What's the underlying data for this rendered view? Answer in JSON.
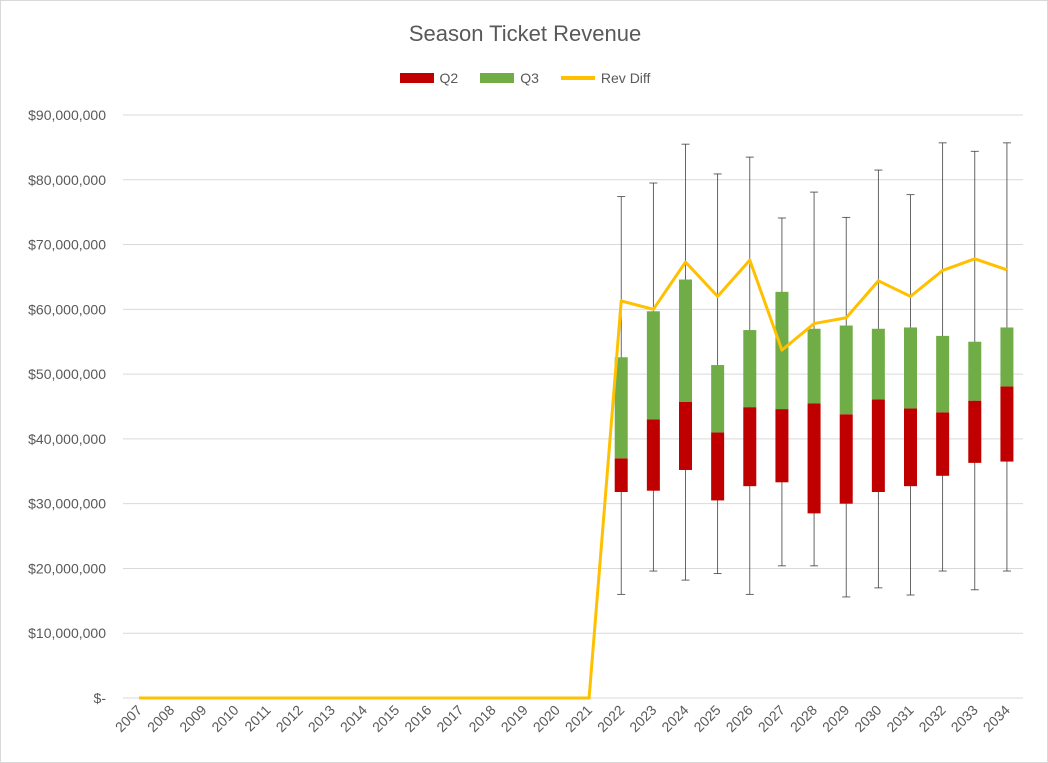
{
  "chart_data": {
    "type": "bar",
    "subtype": "stacked-box-with-whiskers-and-line",
    "title": "Season Ticket Revenue",
    "legend_position": "top",
    "grid": true,
    "ylim": [
      0,
      90000000
    ],
    "y_ticks": [
      0,
      10000000,
      20000000,
      30000000,
      40000000,
      50000000,
      60000000,
      70000000,
      80000000,
      90000000
    ],
    "y_tick_labels": [
      "$-",
      "$10,000,000",
      "$20,000,000",
      "$30,000,000",
      "$40,000,000",
      "$50,000,000",
      "$60,000,000",
      "$70,000,000",
      "$80,000,000",
      "$90,000,000"
    ],
    "categories": [
      "2007",
      "2008",
      "2009",
      "2010",
      "2011",
      "2012",
      "2013",
      "2014",
      "2015",
      "2016",
      "2017",
      "2018",
      "2019",
      "2020",
      "2021",
      "2022",
      "2023",
      "2024",
      "2025",
      "2026",
      "2027",
      "2028",
      "2029",
      "2030",
      "2031",
      "2032",
      "2033",
      "2034"
    ],
    "series": [
      {
        "name": "Q2",
        "color": "#c00000",
        "type": "bar",
        "bottom": [
          null,
          null,
          null,
          null,
          null,
          null,
          null,
          null,
          null,
          null,
          null,
          null,
          null,
          null,
          null,
          31800000,
          32000000,
          35200000,
          30500000,
          32700000,
          33300000,
          28500000,
          30000000,
          31800000,
          32700000,
          34300000,
          36300000,
          36500000
        ],
        "top": [
          null,
          null,
          null,
          null,
          null,
          null,
          null,
          null,
          null,
          null,
          null,
          null,
          null,
          null,
          null,
          37000000,
          43000000,
          45700000,
          41000000,
          44900000,
          44600000,
          45500000,
          43800000,
          46100000,
          44700000,
          44100000,
          45900000,
          48100000
        ]
      },
      {
        "name": "Q3",
        "color": "#70ad47",
        "type": "bar",
        "bottom": [
          null,
          null,
          null,
          null,
          null,
          null,
          null,
          null,
          null,
          null,
          null,
          null,
          null,
          null,
          null,
          37000000,
          43000000,
          45700000,
          41000000,
          44900000,
          44600000,
          45500000,
          43800000,
          46100000,
          44700000,
          44100000,
          45900000,
          48100000
        ],
        "top": [
          null,
          null,
          null,
          null,
          null,
          null,
          null,
          null,
          null,
          null,
          null,
          null,
          null,
          null,
          null,
          52600000,
          59700000,
          64600000,
          51400000,
          56800000,
          62700000,
          57000000,
          57500000,
          57000000,
          57200000,
          55900000,
          55000000,
          57200000
        ]
      },
      {
        "name": "Rev Diff",
        "color": "#ffc000",
        "type": "line",
        "values": [
          0,
          0,
          0,
          0,
          0,
          0,
          0,
          0,
          0,
          0,
          0,
          0,
          0,
          0,
          0,
          61300000,
          60000000,
          67300000,
          62000000,
          67600000,
          53700000,
          57800000,
          58700000,
          64400000,
          62000000,
          66000000,
          67800000,
          66100000
        ]
      }
    ],
    "whiskers": {
      "color": "#404040",
      "low": [
        null,
        null,
        null,
        null,
        null,
        null,
        null,
        null,
        null,
        null,
        null,
        null,
        null,
        null,
        null,
        16000000,
        19600000,
        18200000,
        19200000,
        16000000,
        20400000,
        20400000,
        15600000,
        17000000,
        15900000,
        19600000,
        16700000,
        19600000
      ],
      "high": [
        null,
        null,
        null,
        null,
        null,
        null,
        null,
        null,
        null,
        null,
        null,
        null,
        null,
        null,
        null,
        77400000,
        79500000,
        85500000,
        80900000,
        83500000,
        74100000,
        78100000,
        74200000,
        81500000,
        77700000,
        85700000,
        84400000,
        85700000
      ]
    }
  }
}
